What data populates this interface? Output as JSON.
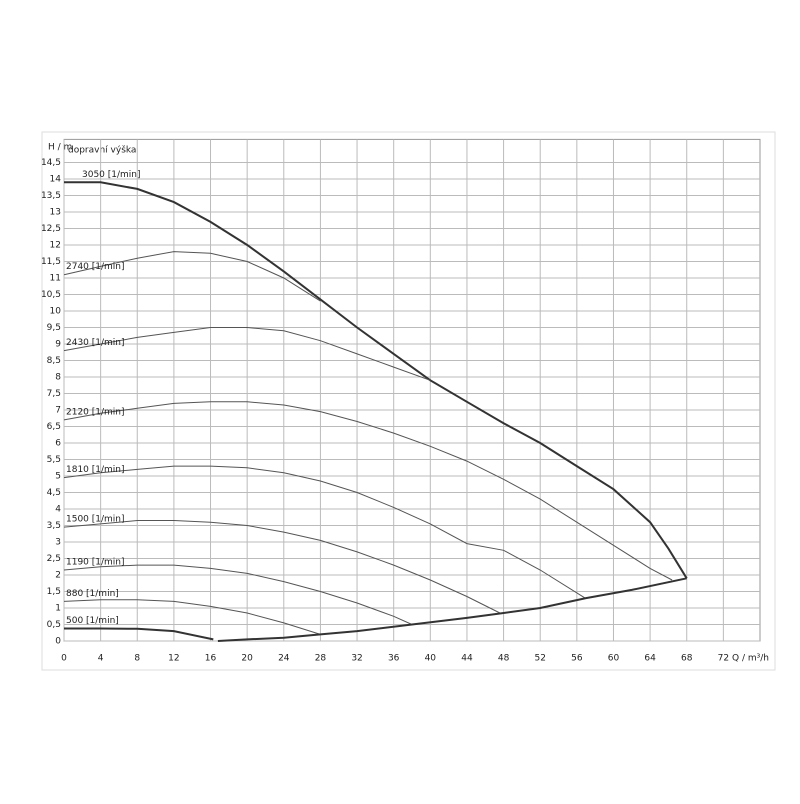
{
  "chart_data": {
    "type": "line",
    "title": "dopravní výška",
    "y_label": "H / m",
    "x_label": "Q / m³/h",
    "xlim": [
      0,
      76
    ],
    "ylim": [
      0,
      15.2
    ],
    "xticks": [
      0,
      4,
      8,
      12,
      16,
      20,
      24,
      28,
      32,
      36,
      40,
      44,
      48,
      52,
      56,
      60,
      64,
      68,
      72
    ],
    "yticks": [
      0,
      {
        "value": 0.5,
        "label": "0,5"
      },
      1,
      {
        "value": 1.5,
        "label": "1,5"
      },
      2,
      {
        "value": 2.5,
        "label": "2,5"
      },
      3,
      {
        "value": 3.5,
        "label": "3,5"
      },
      4,
      {
        "value": 4.5,
        "label": "4,5"
      },
      5,
      {
        "value": 5.5,
        "label": "5,5"
      },
      6,
      {
        "value": 6.5,
        "label": "6,5"
      },
      7,
      {
        "value": 7.5,
        "label": "7,5"
      },
      8,
      {
        "value": 8.5,
        "label": "8,5"
      },
      9,
      {
        "value": 9.5,
        "label": "9,5"
      },
      10,
      {
        "value": 10.5,
        "label": "10,5"
      },
      11,
      {
        "value": 11.5,
        "label": "11,5"
      },
      12,
      {
        "value": 12.5,
        "label": "12,5"
      },
      13,
      {
        "value": 13.5,
        "label": "13,5"
      },
      14,
      {
        "value": 14.5,
        "label": "14,5"
      }
    ],
    "grid": true,
    "series": [
      {
        "name": "3050 [1/min]",
        "color": "#333333",
        "line_width": 2,
        "x": [
          0,
          4,
          8,
          12,
          16,
          20,
          24,
          28,
          32,
          36,
          40,
          44,
          48,
          52,
          56,
          60,
          64,
          66,
          68
        ],
        "values": [
          13.9,
          13.9,
          13.7,
          13.3,
          12.7,
          12.0,
          11.2,
          10.35,
          9.5,
          8.7,
          7.9,
          7.25,
          6.6,
          6.0,
          5.3,
          4.6,
          3.6,
          2.8,
          1.9
        ]
      },
      {
        "name": "2740 [1/min]",
        "color": "#555555",
        "line_width": 1,
        "x": [
          0,
          4,
          8,
          12,
          16,
          20,
          24,
          28
        ],
        "values": [
          11.1,
          11.35,
          11.6,
          11.8,
          11.75,
          11.5,
          11.0,
          10.3
        ]
      },
      {
        "name": "2430 [1/min]",
        "color": "#555555",
        "line_width": 1,
        "x": [
          0,
          4,
          8,
          12,
          16,
          20,
          24,
          28,
          32,
          36,
          40
        ],
        "values": [
          8.8,
          9.0,
          9.2,
          9.35,
          9.5,
          9.5,
          9.4,
          9.1,
          8.7,
          8.3,
          7.9
        ]
      },
      {
        "name": "2120 [1/min]",
        "color": "#555555",
        "line_width": 1,
        "x": [
          0,
          4,
          8,
          12,
          16,
          20,
          24,
          28,
          32,
          36,
          40,
          44,
          48,
          52,
          56,
          60,
          64,
          66.4
        ],
        "values": [
          6.7,
          6.9,
          7.05,
          7.2,
          7.25,
          7.25,
          7.15,
          6.95,
          6.65,
          6.3,
          5.9,
          5.45,
          4.9,
          4.3,
          3.6,
          2.9,
          2.2,
          1.85
        ]
      },
      {
        "name": "1810 [1/min]",
        "color": "#555555",
        "line_width": 1,
        "x": [
          0,
          4,
          8,
          12,
          16,
          20,
          24,
          28,
          32,
          36,
          40,
          44,
          48,
          52,
          56.9
        ],
        "values": [
          4.95,
          5.1,
          5.2,
          5.3,
          5.3,
          5.25,
          5.1,
          4.85,
          4.5,
          4.05,
          3.55,
          2.95,
          2.75,
          2.15,
          1.3
        ]
      },
      {
        "name": "1500 [1/min]",
        "color": "#555555",
        "line_width": 1,
        "x": [
          0,
          4,
          8,
          12,
          16,
          20,
          24,
          28,
          32,
          36,
          40,
          44,
          47.6
        ],
        "values": [
          3.45,
          3.55,
          3.65,
          3.65,
          3.6,
          3.5,
          3.3,
          3.05,
          2.7,
          2.3,
          1.85,
          1.35,
          0.85
        ]
      },
      {
        "name": "1190 [1/min]",
        "color": "#555555",
        "line_width": 1,
        "x": [
          0,
          4,
          8,
          12,
          16,
          20,
          24,
          28,
          32,
          36,
          38
        ],
        "values": [
          2.15,
          2.25,
          2.3,
          2.3,
          2.2,
          2.05,
          1.8,
          1.5,
          1.15,
          0.75,
          0.5
        ]
      },
      {
        "name": "880 [1/min]",
        "color": "#555555",
        "line_width": 1,
        "x": [
          0,
          4,
          8,
          12,
          16,
          20,
          24,
          28
        ],
        "values": [
          1.2,
          1.25,
          1.25,
          1.2,
          1.05,
          0.85,
          0.55,
          0.2
        ]
      },
      {
        "name": "500 [1/min]",
        "color": "#333333",
        "line_width": 2,
        "x": [
          0,
          4,
          8,
          12,
          16.3
        ],
        "values": [
          0.38,
          0.38,
          0.37,
          0.3,
          0.05
        ]
      },
      {
        "color": "#333333",
        "line_width": 2,
        "x": [
          16.8,
          20,
          24,
          28,
          32,
          38,
          44,
          48,
          52,
          57,
          62,
          68
        ],
        "values": [
          0,
          0.05,
          0.1,
          0.2,
          0.3,
          0.5,
          0.7,
          0.85,
          1.0,
          1.3,
          1.55,
          1.9
        ]
      }
    ]
  }
}
